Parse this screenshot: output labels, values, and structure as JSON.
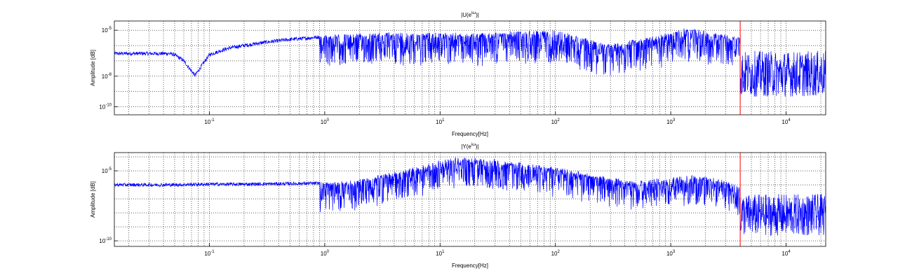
{
  "chart_data": [
    {
      "type": "line",
      "title": "|U(e^{iω})|",
      "title_base": "|U(e",
      "title_exp": "iω",
      "title_tail": ")|",
      "xlabel": "Frequency[Hz]",
      "ylabel": "Amplitude [dB]",
      "xscale": "log",
      "yscale": "log",
      "xlim": [
        0.015,
        22050
      ],
      "ylim": [
        3e-11,
        4e-05
      ],
      "grid": true,
      "x_ticks": [
        {
          "value": 0.1,
          "base": "10",
          "exp": "-1"
        },
        {
          "value": 1,
          "base": "10",
          "exp": "0"
        },
        {
          "value": 10,
          "base": "10",
          "exp": "1"
        },
        {
          "value": 100,
          "base": "10",
          "exp": "2"
        },
        {
          "value": 1000,
          "base": "10",
          "exp": "3"
        },
        {
          "value": 10000,
          "base": "10",
          "exp": "4"
        }
      ],
      "y_ticks": [
        {
          "value": 1e-05,
          "base": "10",
          "exp": "-5"
        },
        {
          "value": 1e-08,
          "base": "10",
          "exp": "-8"
        },
        {
          "value": 1e-10,
          "base": "10",
          "exp": "-10"
        }
      ],
      "vline": {
        "x": 4000,
        "color": "#ff0000"
      },
      "series": [
        {
          "color": "#0000ff",
          "points": [
            [
              0.015,
              3e-07
            ],
            [
              0.02,
              3e-07
            ],
            [
              0.03,
              3e-07
            ],
            [
              0.045,
              3e-07
            ],
            [
              0.05,
              2.5e-07
            ],
            [
              0.06,
              1e-07
            ],
            [
              0.075,
              1.1e-08
            ],
            [
              0.09,
              8e-08
            ],
            [
              0.1,
              2.5e-07
            ],
            [
              0.13,
              5e-07
            ],
            [
              0.15,
              7e-07
            ],
            [
              0.2,
              1e-06
            ],
            [
              0.3,
              1.6e-06
            ],
            [
              0.5,
              2.5e-06
            ],
            [
              0.7,
              3e-06
            ],
            [
              1,
              4e-06
            ],
            [
              1.5,
              4.5e-06
            ],
            [
              2,
              5e-06
            ],
            [
              3,
              5.5e-06
            ],
            [
              5,
              6e-06
            ],
            [
              10,
              5.5e-06
            ],
            [
              20,
              5e-06
            ],
            [
              50,
              7e-06
            ],
            [
              100,
              8e-06
            ],
            [
              130,
              5e-06
            ],
            [
              200,
              2e-06
            ],
            [
              300,
              1e-06
            ],
            [
              400,
              1.5e-06
            ],
            [
              500,
              2e-06
            ],
            [
              700,
              3e-06
            ],
            [
              1000,
              6e-06
            ],
            [
              1200,
              1e-05
            ],
            [
              1500,
              1.1e-05
            ],
            [
              2000,
              7e-06
            ],
            [
              3000,
              4e-06
            ],
            [
              3800,
              3e-06
            ],
            [
              4000,
              2.5e-06
            ],
            [
              4001,
              2e-08
            ],
            [
              6000,
              2e-08
            ],
            [
              10000,
              2e-08
            ],
            [
              15000,
              2e-08
            ],
            [
              22050,
              2e-08
            ]
          ]
        }
      ]
    },
    {
      "type": "line",
      "title": "|Y(e^{iω})|",
      "title_base": "|Y(e",
      "title_exp": "iω",
      "title_tail": ")|",
      "xlabel": "Frequency[Hz]",
      "ylabel": "Amplitude [dB]",
      "xscale": "log",
      "yscale": "log",
      "xlim": [
        0.015,
        22050
      ],
      "ylim": [
        4e-11,
        0.0002
      ],
      "grid": true,
      "x_ticks": [
        {
          "value": 0.1,
          "base": "10",
          "exp": "-1"
        },
        {
          "value": 1,
          "base": "10",
          "exp": "0"
        },
        {
          "value": 10,
          "base": "10",
          "exp": "1"
        },
        {
          "value": 100,
          "base": "10",
          "exp": "2"
        },
        {
          "value": 1000,
          "base": "10",
          "exp": "3"
        },
        {
          "value": 10000,
          "base": "10",
          "exp": "4"
        }
      ],
      "y_ticks": [
        {
          "value": 1e-05,
          "base": "10",
          "exp": "-5"
        },
        {
          "value": 1e-10,
          "base": "10",
          "exp": "-10"
        }
      ],
      "vline": {
        "x": 4000,
        "color": "#ff0000"
      },
      "series": [
        {
          "color": "#0000ff",
          "points": [
            [
              0.015,
              1e-06
            ],
            [
              0.05,
              1e-06
            ],
            [
              0.1,
              1.1e-06
            ],
            [
              0.2,
              1.1e-06
            ],
            [
              0.5,
              1.2e-06
            ],
            [
              1,
              1.3e-06
            ],
            [
              1.5,
              1.5e-06
            ],
            [
              2,
              2e-06
            ],
            [
              3,
              4e-06
            ],
            [
              5,
              1e-05
            ],
            [
              8,
              2.5e-05
            ],
            [
              10,
              5e-05
            ],
            [
              15,
              7e-05
            ],
            [
              20,
              6e-05
            ],
            [
              30,
              5e-05
            ],
            [
              50,
              3e-05
            ],
            [
              100,
              1.5e-05
            ],
            [
              200,
              5e-06
            ],
            [
              300,
              2.5e-06
            ],
            [
              500,
              1.5e-06
            ],
            [
              700,
              2e-06
            ],
            [
              1000,
              3e-06
            ],
            [
              1500,
              4e-06
            ],
            [
              2000,
              3e-06
            ],
            [
              3000,
              1.5e-06
            ],
            [
              4000,
              8e-07
            ],
            [
              4001,
              1e-08
            ],
            [
              6000,
              1e-08
            ],
            [
              10000,
              1e-08
            ],
            [
              15000,
              1e-08
            ],
            [
              22050,
              1e-08
            ]
          ]
        }
      ]
    }
  ]
}
